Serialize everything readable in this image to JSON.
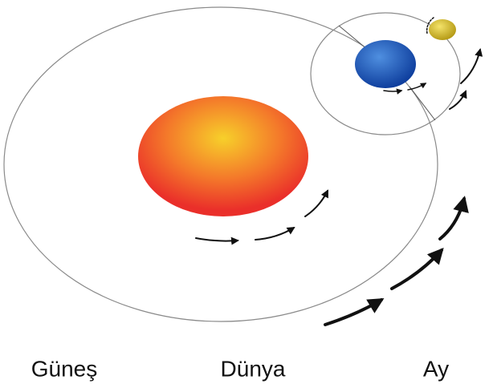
{
  "labels": [
    "Güneş",
    "Dünya",
    "Ay"
  ]
}
